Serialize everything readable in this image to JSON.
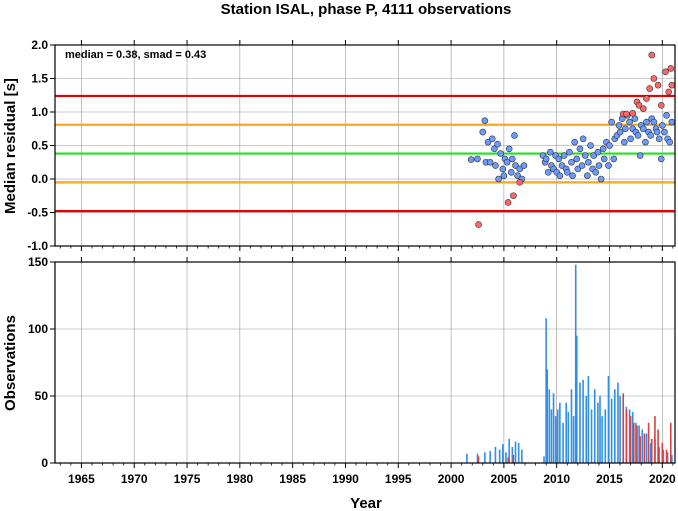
{
  "chart_data": [
    {
      "panel": "top",
      "type": "scatter",
      "title": "Station ISAL, phase P, 4111 observations",
      "annotation": "median = 0.38, smad = 0.43",
      "ylabel": "Median residual [s]",
      "ylim": [
        -1.0,
        2.0
      ],
      "xlim": [
        1962.5,
        2021.2
      ],
      "y_ticks": [
        "-1.0",
        "-0.5",
        "0.0",
        "0.5",
        "1.0",
        "1.5",
        "2.0"
      ],
      "grid": true,
      "reference_lines": [
        {
          "value": 1.24,
          "color": "#e60000"
        },
        {
          "value": 0.81,
          "color": "#f5a623"
        },
        {
          "value": 0.38,
          "color": "#22e022"
        },
        {
          "value": -0.05,
          "color": "#f5a623"
        },
        {
          "value": -0.48,
          "color": "#e60000"
        }
      ],
      "series": [
        {
          "color": "#6b9bff",
          "points": [
            [
              2001.9,
              0.29
            ],
            [
              2002.5,
              0.3
            ],
            [
              2003.0,
              0.7
            ],
            [
              2003.2,
              0.87
            ],
            [
              2003.3,
              0.25
            ],
            [
              2003.5,
              0.55
            ],
            [
              2003.7,
              0.25
            ],
            [
              2003.9,
              0.6
            ],
            [
              2004.1,
              0.45
            ],
            [
              2004.2,
              0.2
            ],
            [
              2004.4,
              0.52
            ],
            [
              2004.5,
              0.0
            ],
            [
              2004.7,
              0.38
            ],
            [
              2004.9,
              0.15
            ],
            [
              2005.0,
              0.05
            ],
            [
              2005.1,
              0.3
            ],
            [
              2005.3,
              0.25
            ],
            [
              2005.5,
              0.45
            ],
            [
              2005.7,
              0.1
            ],
            [
              2005.8,
              0.3
            ],
            [
              2006.0,
              0.65
            ],
            [
              2006.1,
              0.2
            ],
            [
              2006.3,
              0.05
            ],
            [
              2006.5,
              0.15
            ],
            [
              2006.7,
              0.0
            ],
            [
              2006.9,
              0.2
            ],
            [
              2008.7,
              0.35
            ],
            [
              2008.9,
              0.25
            ],
            [
              2009.0,
              0.3
            ],
            [
              2009.2,
              0.1
            ],
            [
              2009.4,
              0.4
            ],
            [
              2009.5,
              0.2
            ],
            [
              2009.7,
              0.15
            ],
            [
              2009.9,
              0.35
            ],
            [
              2010.0,
              0.1
            ],
            [
              2010.2,
              0.3
            ],
            [
              2010.3,
              0.05
            ],
            [
              2010.5,
              0.2
            ],
            [
              2010.7,
              0.35
            ],
            [
              2010.9,
              0.15
            ],
            [
              2011.0,
              0.1
            ],
            [
              2011.2,
              0.4
            ],
            [
              2011.4,
              0.25
            ],
            [
              2011.5,
              0.05
            ],
            [
              2011.7,
              0.55
            ],
            [
              2011.9,
              0.3
            ],
            [
              2012.0,
              0.15
            ],
            [
              2012.2,
              0.45
            ],
            [
              2012.4,
              0.2
            ],
            [
              2012.5,
              0.6
            ],
            [
              2012.7,
              0.35
            ],
            [
              2012.9,
              0.05
            ],
            [
              2013.0,
              0.25
            ],
            [
              2013.2,
              0.5
            ],
            [
              2013.4,
              0.15
            ],
            [
              2013.5,
              0.35
            ],
            [
              2013.7,
              0.1
            ],
            [
              2013.9,
              0.4
            ],
            [
              2014.0,
              0.2
            ],
            [
              2014.2,
              0.0
            ],
            [
              2014.4,
              0.45
            ],
            [
              2014.5,
              0.3
            ],
            [
              2014.7,
              0.55
            ],
            [
              2014.9,
              0.2
            ],
            [
              2015.0,
              0.5
            ],
            [
              2015.2,
              0.85
            ],
            [
              2015.4,
              0.3
            ],
            [
              2015.5,
              0.6
            ],
            [
              2015.7,
              0.65
            ],
            [
              2015.9,
              0.8
            ],
            [
              2016.0,
              0.7
            ],
            [
              2016.2,
              0.9
            ],
            [
              2016.4,
              0.55
            ],
            [
              2016.5,
              0.75
            ],
            [
              2016.7,
              0.95
            ],
            [
              2016.9,
              0.85
            ],
            [
              2017.0,
              0.6
            ],
            [
              2017.2,
              0.75
            ],
            [
              2017.4,
              0.9
            ],
            [
              2017.5,
              0.7
            ],
            [
              2017.7,
              0.65
            ],
            [
              2017.9,
              0.35
            ],
            [
              2018.0,
              0.8
            ],
            [
              2018.2,
              0.75
            ],
            [
              2018.4,
              0.55
            ],
            [
              2018.5,
              0.85
            ],
            [
              2018.7,
              0.7
            ],
            [
              2018.9,
              0.65
            ],
            [
              2019.0,
              0.9
            ],
            [
              2019.2,
              0.85
            ],
            [
              2019.4,
              0.75
            ],
            [
              2019.5,
              0.7
            ],
            [
              2019.7,
              0.6
            ],
            [
              2019.9,
              0.3
            ],
            [
              2020.0,
              0.8
            ],
            [
              2020.2,
              0.7
            ],
            [
              2020.4,
              0.95
            ],
            [
              2020.5,
              0.6
            ],
            [
              2020.7,
              0.55
            ],
            [
              2020.9,
              0.85
            ]
          ]
        },
        {
          "color": "#ff6666",
          "points": [
            [
              2002.6,
              -0.68
            ],
            [
              2005.4,
              -0.35
            ],
            [
              2005.9,
              -0.25
            ],
            [
              2006.5,
              -0.05
            ],
            [
              2016.3,
              0.97
            ],
            [
              2016.6,
              0.97
            ],
            [
              2017.2,
              0.98
            ],
            [
              2017.6,
              1.15
            ],
            [
              2017.8,
              1.1
            ],
            [
              2018.2,
              1.05
            ],
            [
              2018.5,
              1.2
            ],
            [
              2018.8,
              1.35
            ],
            [
              2019.0,
              1.85
            ],
            [
              2019.2,
              1.5
            ],
            [
              2019.6,
              1.4
            ],
            [
              2019.9,
              1.1
            ],
            [
              2020.3,
              1.6
            ],
            [
              2020.6,
              1.3
            ],
            [
              2020.8,
              1.65
            ],
            [
              2020.9,
              1.4
            ]
          ]
        }
      ]
    },
    {
      "panel": "bottom",
      "type": "bar",
      "xlabel": "Year",
      "ylabel": "Observations",
      "ylim": [
        0,
        150
      ],
      "xlim": [
        1962.5,
        2021.2
      ],
      "y_ticks": [
        "0",
        "50",
        "100",
        "150"
      ],
      "x_ticks": [
        "1965",
        "1970",
        "1975",
        "1980",
        "1985",
        "1990",
        "1995",
        "2000",
        "2005",
        "2010",
        "2015",
        "2020"
      ],
      "grid": true,
      "series": [
        {
          "color": "#2e8fe8",
          "bars": [
            [
              2001.5,
              7
            ],
            [
              2002.5,
              7
            ],
            [
              2003.2,
              8
            ],
            [
              2003.7,
              9
            ],
            [
              2004.2,
              12
            ],
            [
              2004.6,
              10
            ],
            [
              2004.9,
              14
            ],
            [
              2005.2,
              8
            ],
            [
              2005.5,
              18
            ],
            [
              2005.8,
              12
            ],
            [
              2006.1,
              16
            ],
            [
              2006.4,
              15
            ],
            [
              2006.7,
              10
            ],
            [
              2008.8,
              5
            ],
            [
              2009.0,
              108
            ],
            [
              2009.1,
              70
            ],
            [
              2009.3,
              55
            ],
            [
              2009.5,
              40
            ],
            [
              2009.7,
              52
            ],
            [
              2009.9,
              35
            ],
            [
              2010.1,
              40
            ],
            [
              2010.3,
              45
            ],
            [
              2010.6,
              30
            ],
            [
              2010.9,
              45
            ],
            [
              2011.1,
              38
            ],
            [
              2011.4,
              55
            ],
            [
              2011.6,
              35
            ],
            [
              2011.8,
              148
            ],
            [
              2011.9,
              95
            ],
            [
              2012.2,
              60
            ],
            [
              2012.5,
              62
            ],
            [
              2012.8,
              50
            ],
            [
              2013.0,
              65
            ],
            [
              2013.3,
              40
            ],
            [
              2013.6,
              55
            ],
            [
              2013.9,
              45
            ],
            [
              2014.1,
              50
            ],
            [
              2014.3,
              35
            ],
            [
              2014.6,
              40
            ],
            [
              2014.9,
              65
            ],
            [
              2015.2,
              48
            ],
            [
              2015.5,
              55
            ],
            [
              2015.8,
              60
            ],
            [
              2016.0,
              50
            ],
            [
              2016.3,
              45
            ],
            [
              2016.6,
              42
            ],
            [
              2016.9,
              40
            ],
            [
              2017.2,
              38
            ],
            [
              2017.5,
              30
            ],
            [
              2017.8,
              28
            ],
            [
              2018.1,
              25
            ],
            [
              2018.5,
              22
            ],
            [
              2018.9,
              15
            ],
            [
              2019.3,
              18
            ],
            [
              2019.7,
              12
            ],
            [
              2020.1,
              10
            ],
            [
              2020.5,
              8
            ],
            [
              2020.9,
              6
            ]
          ]
        },
        {
          "color": "#d94040",
          "bars": [
            [
              2002.6,
              5
            ],
            [
              2005.4,
              4
            ],
            [
              2005.9,
              6
            ],
            [
              2016.3,
              52
            ],
            [
              2016.6,
              40
            ],
            [
              2017.0,
              35
            ],
            [
              2017.3,
              30
            ],
            [
              2017.6,
              28
            ],
            [
              2017.9,
              20
            ],
            [
              2018.3,
              22
            ],
            [
              2018.7,
              30
            ],
            [
              2019.0,
              18
            ],
            [
              2019.3,
              35
            ],
            [
              2019.6,
              25
            ],
            [
              2020.0,
              15
            ],
            [
              2020.4,
              10
            ],
            [
              2020.8,
              30
            ]
          ]
        }
      ]
    }
  ]
}
